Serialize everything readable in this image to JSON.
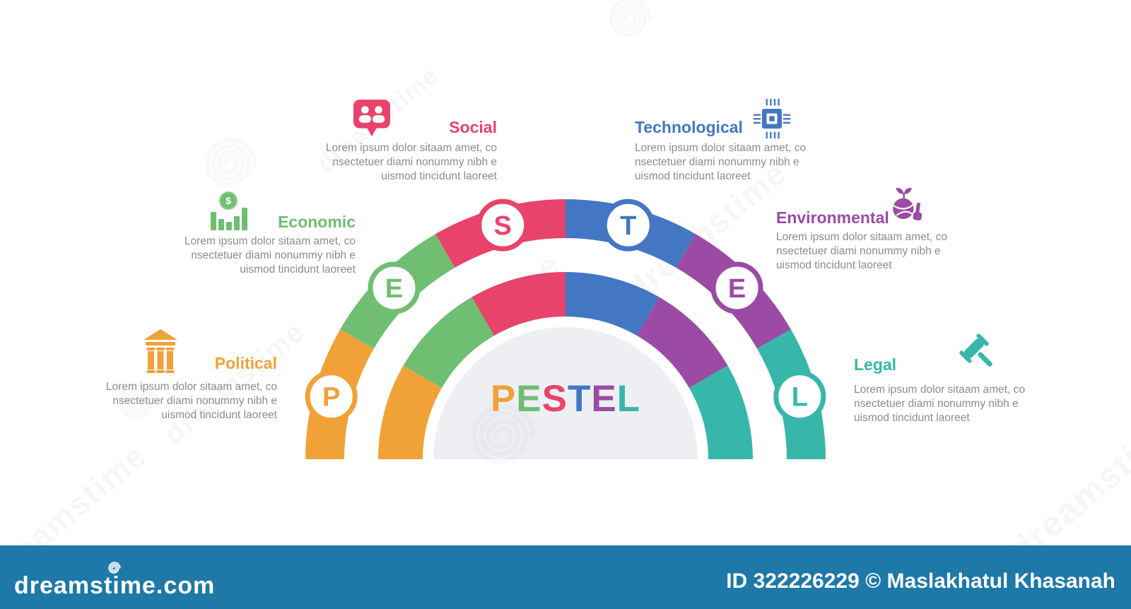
{
  "title": {
    "letters": [
      {
        "ch": "P",
        "color": "#f0a238"
      },
      {
        "ch": "E",
        "color": "#6fbe72"
      },
      {
        "ch": "S",
        "color": "#e8436b"
      },
      {
        "ch": "T",
        "color": "#4377c4"
      },
      {
        "ch": "E",
        "color": "#9b4ba4"
      },
      {
        "ch": "L",
        "color": "#36b7aa"
      }
    ]
  },
  "sections": [
    {
      "id": "political",
      "letter": "P",
      "label": "Political",
      "color": "#f0a238",
      "icon": "bank-icon"
    },
    {
      "id": "economic",
      "letter": "E",
      "label": "Economic",
      "color": "#6fbe72",
      "icon": "bar-chart-coin-icon"
    },
    {
      "id": "social",
      "letter": "S",
      "label": "Social",
      "color": "#e8436b",
      "icon": "people-bubble-icon"
    },
    {
      "id": "technological",
      "letter": "T",
      "label": "Technological",
      "color": "#4377c4",
      "icon": "cpu-chip-icon"
    },
    {
      "id": "environmental",
      "letter": "E",
      "label": "Environmental",
      "color": "#9b4ba4",
      "icon": "eco-globe-hand-icon"
    },
    {
      "id": "legal",
      "letter": "L",
      "label": "Legal",
      "color": "#36b7aa",
      "icon": "gavel-icon"
    }
  ],
  "lorem_lines": [
    "Lorem ipsum dolor sitaam amet, co",
    "nsectetuer diami nonummy  nibh e",
    "uismod tincidunt laoreet"
  ],
  "center_disc_color": "#edeff3",
  "watermark": {
    "text": "dreamstime",
    "site": "dreamstime.com",
    "credit": "ID 322226229 © Maslakhatul Khasanah",
    "bar_color": "#1e78a8"
  }
}
